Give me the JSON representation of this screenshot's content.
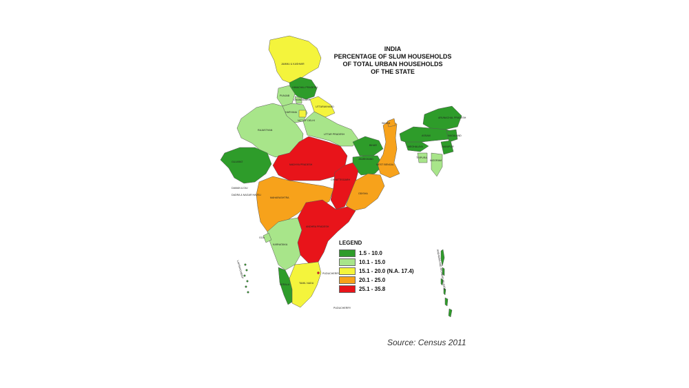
{
  "title_lines": [
    "INDIA",
    "PERCENTAGE OF SLUM HOUSEHOLDS",
    "OF TOTAL URBAN HOUSEHOLDS",
    "OF THE STATE"
  ],
  "legend": {
    "title": "LEGEND",
    "items": [
      {
        "label": "1.5 - 10.0",
        "color": "#2e9c2a"
      },
      {
        "label": "10.1 - 15.0",
        "color": "#a8e58a"
      },
      {
        "label": "15.1 - 20.0 (N.A. 17.4)",
        "color": "#f4f43c"
      },
      {
        "label": "20.1 - 25.0",
        "color": "#f7a21b"
      },
      {
        "label": "25.1 - 35.8",
        "color": "#e8141a"
      }
    ]
  },
  "regions": [
    {
      "key": "jk",
      "label": "JAMMU & KASHMIR",
      "class": 2
    },
    {
      "key": "hp",
      "label": "HIMACHAL PRADESH",
      "class": 0
    },
    {
      "key": "pb",
      "label": "PUNJAB",
      "class": 1
    },
    {
      "key": "ch",
      "label": "CHANDIGARH",
      "class": 1
    },
    {
      "key": "uk",
      "label": "UTTARAKHAND",
      "class": 2
    },
    {
      "key": "hr",
      "label": "HARYANA",
      "class": 1
    },
    {
      "key": "dl",
      "label": "NCT OF DELHI",
      "class": 2
    },
    {
      "key": "rj",
      "label": "RAJASTHAN",
      "class": 1
    },
    {
      "key": "up",
      "label": "UTTAR PRADESH",
      "class": 1
    },
    {
      "key": "gj",
      "label": "GUJARAT",
      "class": 0
    },
    {
      "key": "mp",
      "label": "MADHYA PRADESH",
      "class": 4
    },
    {
      "key": "br",
      "label": "BIHAR",
      "class": 0
    },
    {
      "key": "jh",
      "label": "JHARKHAND",
      "class": 0
    },
    {
      "key": "wb",
      "label": "WEST BENGAL",
      "class": 3
    },
    {
      "key": "sk",
      "label": "SIKKIM",
      "class": 3
    },
    {
      "key": "cg",
      "label": "CHHATTISGARH",
      "class": 4
    },
    {
      "key": "od",
      "label": "ODISHA",
      "class": 3
    },
    {
      "key": "mh",
      "label": "MAHARASHTRA",
      "class": 3
    },
    {
      "key": "ap",
      "label": "ANDHRA PRADESH",
      "class": 4
    },
    {
      "key": "ka",
      "label": "KARNATAKA",
      "class": 1
    },
    {
      "key": "ga",
      "label": "GOA",
      "class": 1
    },
    {
      "key": "kl",
      "label": "KERALA",
      "class": 0
    },
    {
      "key": "tn",
      "label": "TAMIL NADU",
      "class": 2
    },
    {
      "key": "ar",
      "label": "ARUNACHAL PRADESH",
      "class": 0
    },
    {
      "key": "as",
      "label": "ASSAM",
      "class": 0
    },
    {
      "key": "ml",
      "label": "MEGHALAYA",
      "class": 0
    },
    {
      "key": "nl",
      "label": "NAGALAND",
      "class": 0
    },
    {
      "key": "mn",
      "label": "MANIPUR",
      "class": 0
    },
    {
      "key": "mz",
      "label": "MIZORAM",
      "class": 1
    },
    {
      "key": "tr",
      "label": "TRIPURA",
      "class": 1
    },
    {
      "key": "an",
      "label": "ANDAMAN AND NICOBAR ISLANDS",
      "class": 0
    },
    {
      "key": "ld",
      "label": "LAKSHADWEEP",
      "class": 0
    }
  ],
  "small_labels": {
    "dd": "DAMAN & DIU",
    "dnh": "DADRA & NAGAR HAVELI",
    "py1": "PUDUCHERRY",
    "py2": "PUDUCHERRY"
  },
  "source": "Source: Census 2011"
}
